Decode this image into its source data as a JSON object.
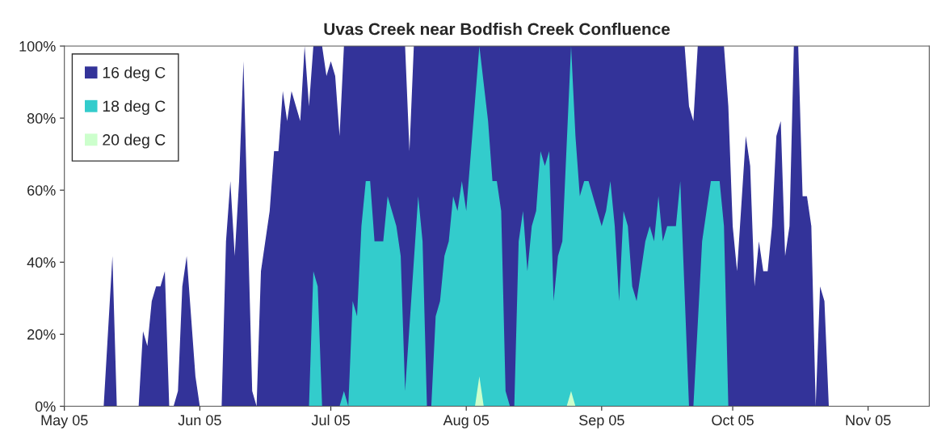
{
  "chart_data": {
    "type": "area",
    "title": "Uvas Creek near Bodfish Creek Confluence",
    "series": [
      {
        "name": "16 deg C",
        "color": "#333399",
        "x": [
          "2005-05-01",
          "2005-05-10",
          "2005-05-12",
          "2005-05-13",
          "2005-05-18",
          "2005-05-19",
          "2005-05-20",
          "2005-05-21",
          "2005-05-22",
          "2005-05-23",
          "2005-05-24",
          "2005-05-25",
          "2005-05-26",
          "2005-05-27",
          "2005-05-28",
          "2005-05-29",
          "2005-05-31",
          "2005-06-01",
          "2005-06-06",
          "2005-06-07",
          "2005-06-08",
          "2005-06-09",
          "2005-06-10",
          "2005-06-11",
          "2005-06-13",
          "2005-06-14",
          "2005-06-15",
          "2005-06-17",
          "2005-06-18",
          "2005-06-19",
          "2005-06-20",
          "2005-06-21",
          "2005-06-22",
          "2005-06-24",
          "2005-06-25",
          "2005-06-26",
          "2005-06-27",
          "2005-06-29",
          "2005-06-30",
          "2005-07-01",
          "2005-07-02",
          "2005-07-03",
          "2005-07-04",
          "2005-07-18",
          "2005-07-19",
          "2005-07-20",
          "2005-09-20",
          "2005-09-21",
          "2005-09-22",
          "2005-09-23",
          "2005-09-29",
          "2005-09-30",
          "2005-10-01",
          "2005-10-02",
          "2005-10-04",
          "2005-10-05",
          "2005-10-06",
          "2005-10-07",
          "2005-10-08",
          "2005-10-09",
          "2005-10-10",
          "2005-10-11",
          "2005-10-12",
          "2005-10-13",
          "2005-10-14",
          "2005-10-15",
          "2005-10-16",
          "2005-10-17",
          "2005-10-18",
          "2005-10-19",
          "2005-10-20",
          "2005-10-21",
          "2005-10-22",
          "2005-10-23",
          "2005-11-15"
        ],
        "values": [
          0,
          0,
          41.7,
          0,
          0,
          20.8,
          16.7,
          29.2,
          33.3,
          33.3,
          37.5,
          0,
          0,
          4.2,
          33.3,
          41.7,
          8.3,
          0,
          0,
          45.8,
          62.5,
          41.7,
          62.5,
          95.8,
          4.2,
          0,
          37.5,
          54.2,
          70.8,
          70.8,
          87.5,
          79.2,
          87.5,
          79.2,
          100,
          83.3,
          100,
          100,
          91.7,
          95.8,
          91.7,
          75,
          100,
          100,
          70.8,
          100,
          100,
          83.3,
          79.2,
          100,
          100,
          83.3,
          50,
          37.5,
          75,
          66.7,
          33.3,
          45.8,
          37.5,
          37.5,
          50,
          75,
          79.2,
          41.7,
          50,
          100,
          100,
          58.3,
          58.3,
          50,
          0,
          33.3,
          29.2,
          0,
          0
        ]
      },
      {
        "name": "18 deg C",
        "color": "#33cccc",
        "x": [
          "2005-06-26",
          "2005-06-27",
          "2005-06-28",
          "2005-06-29",
          "2005-07-03",
          "2005-07-04",
          "2005-07-05",
          "2005-07-06",
          "2005-07-07",
          "2005-07-08",
          "2005-07-09",
          "2005-07-10",
          "2005-07-11",
          "2005-07-13",
          "2005-07-14",
          "2005-07-16",
          "2005-07-17",
          "2005-07-18",
          "2005-07-21",
          "2005-07-22",
          "2005-07-23",
          "2005-07-24",
          "2005-07-25",
          "2005-07-26",
          "2005-07-27",
          "2005-07-28",
          "2005-07-29",
          "2005-07-30",
          "2005-07-31",
          "2005-08-01",
          "2005-08-04",
          "2005-08-06",
          "2005-08-07",
          "2005-08-08",
          "2005-08-09",
          "2005-08-10",
          "2005-08-11",
          "2005-08-12",
          "2005-08-13",
          "2005-08-14",
          "2005-08-15",
          "2005-08-16",
          "2005-08-17",
          "2005-08-18",
          "2005-08-19",
          "2005-08-20",
          "2005-08-21",
          "2005-08-22",
          "2005-08-23",
          "2005-08-25",
          "2005-08-26",
          "2005-08-27",
          "2005-08-28",
          "2005-08-29",
          "2005-08-30",
          "2005-09-01",
          "2005-09-02",
          "2005-09-03",
          "2005-09-04",
          "2005-09-05",
          "2005-09-06",
          "2005-09-07",
          "2005-09-08",
          "2005-09-09",
          "2005-09-10",
          "2005-09-11",
          "2005-09-12",
          "2005-09-13",
          "2005-09-14",
          "2005-09-15",
          "2005-09-16",
          "2005-09-18",
          "2005-09-19",
          "2005-09-21",
          "2005-09-22",
          "2005-09-24",
          "2005-09-25",
          "2005-09-26",
          "2005-09-28",
          "2005-09-29",
          "2005-09-30"
        ],
        "values": [
          0,
          37.5,
          33.3,
          0,
          0,
          4.2,
          0,
          29.2,
          25,
          50,
          62.5,
          62.5,
          45.8,
          45.8,
          58.3,
          50,
          41.7,
          4.2,
          58.3,
          45.8,
          0,
          0,
          25,
          29.2,
          41.7,
          45.8,
          58.3,
          54.2,
          62.5,
          54.2,
          100,
          79.2,
          62.5,
          62.5,
          54.2,
          4.2,
          0,
          0,
          45.8,
          54.2,
          37.5,
          50,
          54.2,
          70.8,
          66.7,
          70.8,
          29.2,
          41.7,
          45.8,
          100,
          75,
          58.3,
          62.5,
          62.5,
          58.3,
          50,
          54.2,
          62.5,
          50,
          29.2,
          54.2,
          50,
          33.3,
          29.2,
          37.5,
          45.8,
          50,
          45.8,
          58.3,
          45.8,
          50,
          50,
          62.5,
          0,
          0,
          45.8,
          54.2,
          62.5,
          62.5,
          50,
          0
        ]
      },
      {
        "name": "20 deg C",
        "color": "#ccffcc",
        "x": [
          "2005-08-03",
          "2005-08-04",
          "2005-08-05",
          "2005-08-24",
          "2005-08-25",
          "2005-08-26"
        ],
        "values": [
          0,
          8.3,
          0,
          0,
          4.2,
          0
        ]
      }
    ],
    "xlim": [
      "2005-05-01",
      "2005-11-15"
    ],
    "xticks": [
      {
        "value": "2005-05-01",
        "label": "May 05"
      },
      {
        "value": "2005-06-01",
        "label": "Jun 05"
      },
      {
        "value": "2005-07-01",
        "label": "Jul 05"
      },
      {
        "value": "2005-08-01",
        "label": "Aug 05"
      },
      {
        "value": "2005-09-01",
        "label": "Sep 05"
      },
      {
        "value": "2005-10-01",
        "label": "Oct 05"
      },
      {
        "value": "2005-11-01",
        "label": "Nov 05"
      }
    ],
    "ylim": [
      0,
      100
    ],
    "yticks": [
      {
        "value": 0,
        "label": "0%"
      },
      {
        "value": 20,
        "label": "20%"
      },
      {
        "value": 40,
        "label": "40%"
      },
      {
        "value": 60,
        "label": "60%"
      },
      {
        "value": 80,
        "label": "80%"
      },
      {
        "value": 100,
        "label": "100%"
      }
    ],
    "grid": false,
    "legend": "top left"
  }
}
